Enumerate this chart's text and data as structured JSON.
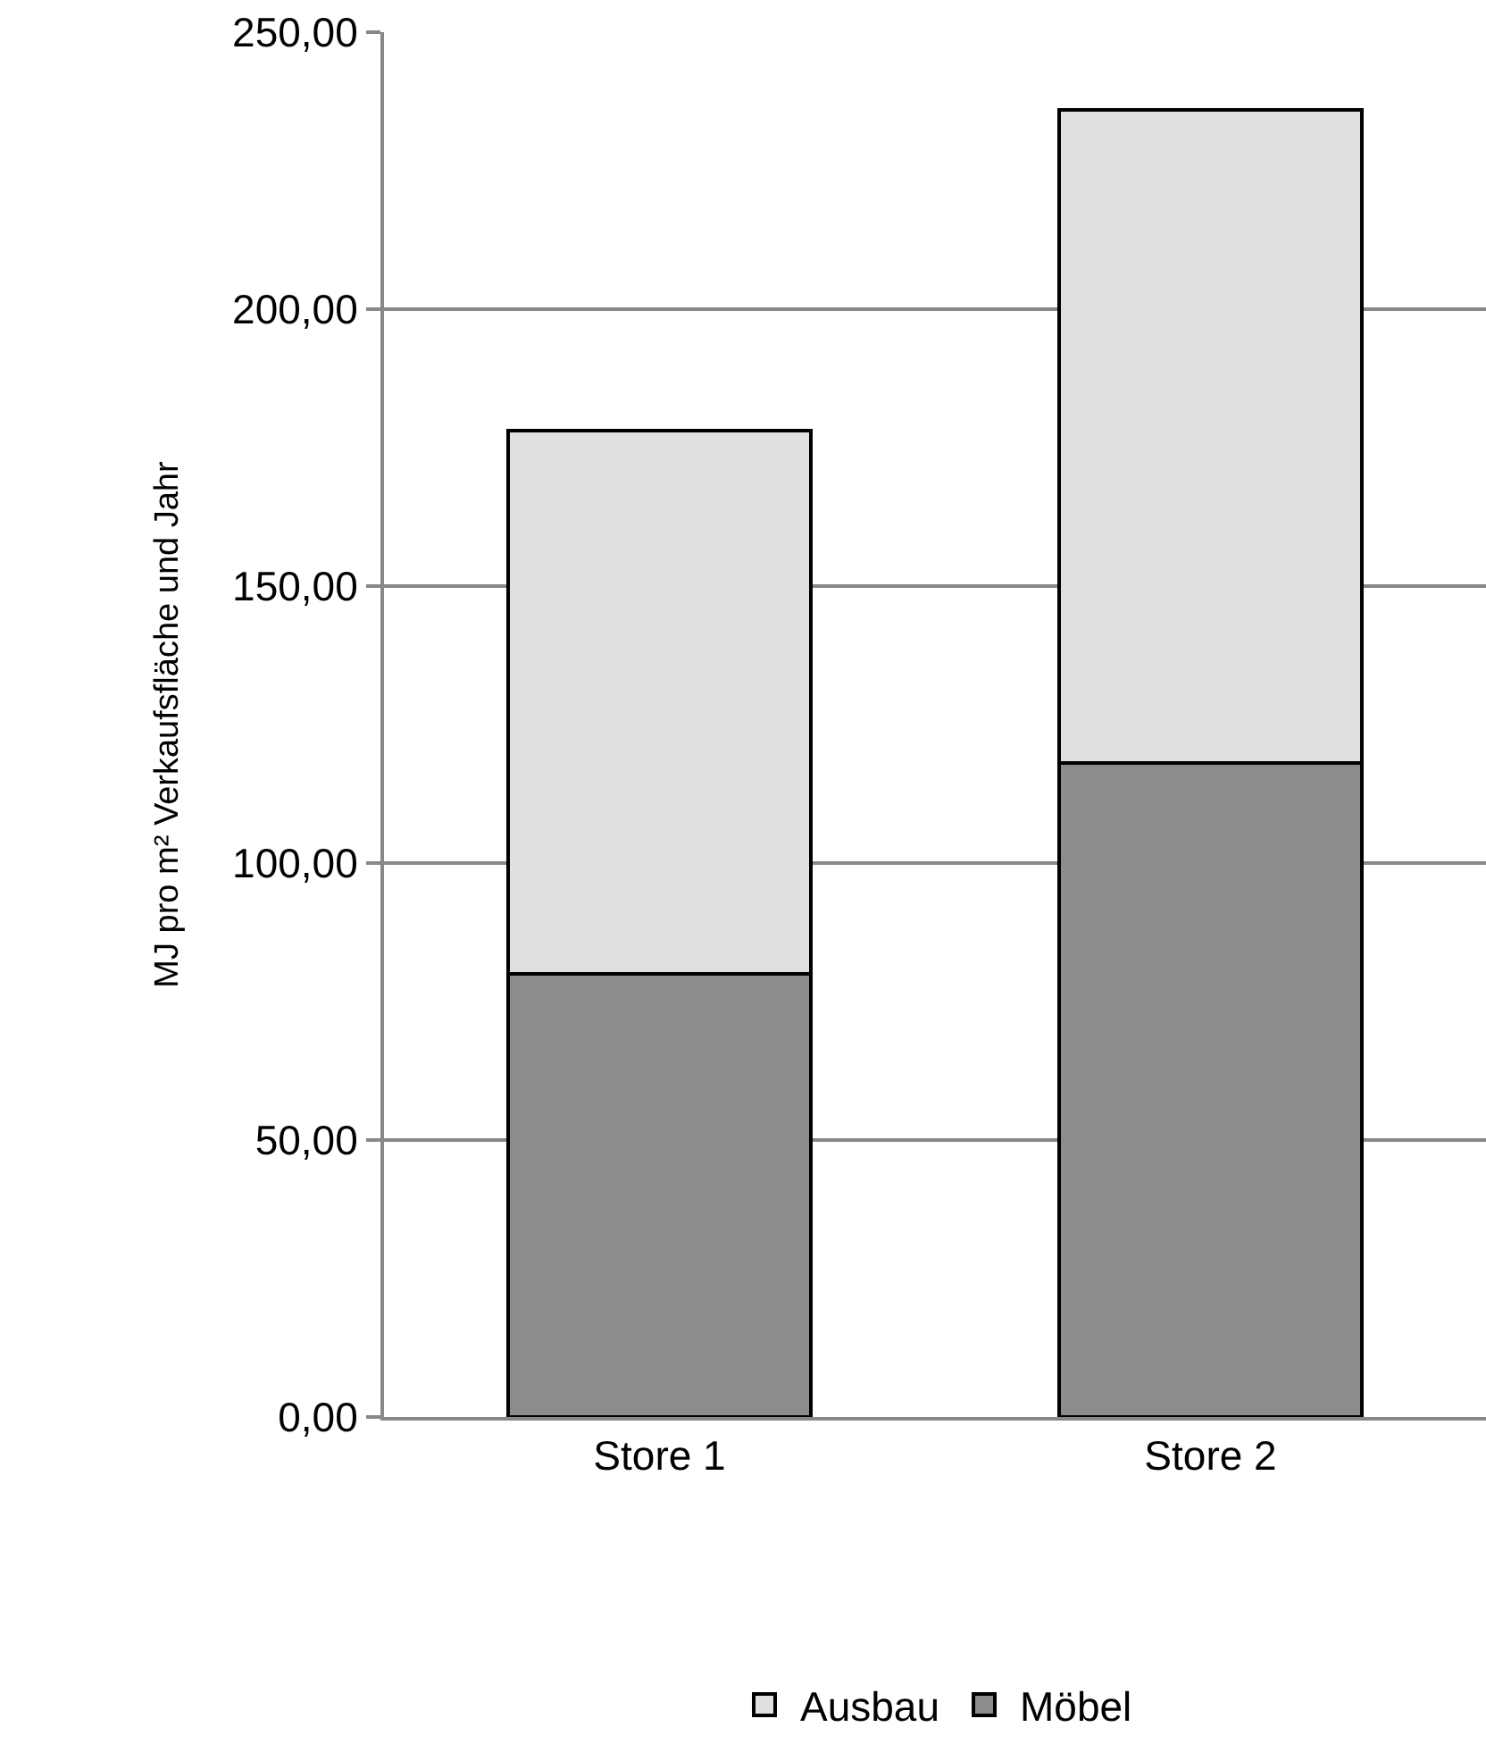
{
  "chart_data": {
    "type": "bar",
    "stacked": true,
    "ylabel": "MJ pro m² Verkaufsfläche und Jahr",
    "categories": [
      "Store 1",
      "Store 2"
    ],
    "series": [
      {
        "name": "Möbel",
        "color": "#8c8c8c",
        "values": [
          80,
          118
        ]
      },
      {
        "name": "Ausbau",
        "color": "#e0e0e0",
        "values": [
          98,
          118
        ]
      }
    ],
    "ylim": [
      0,
      250
    ],
    "yticks": [
      {
        "value": 0,
        "label": "0,00"
      },
      {
        "value": 50,
        "label": "50,00"
      },
      {
        "value": 100,
        "label": "100,00"
      },
      {
        "value": 150,
        "label": "150,00"
      },
      {
        "value": 200,
        "label": "200,00"
      },
      {
        "value": 250,
        "label": "250,00"
      }
    ],
    "grid": "y",
    "legend": "bottom"
  }
}
